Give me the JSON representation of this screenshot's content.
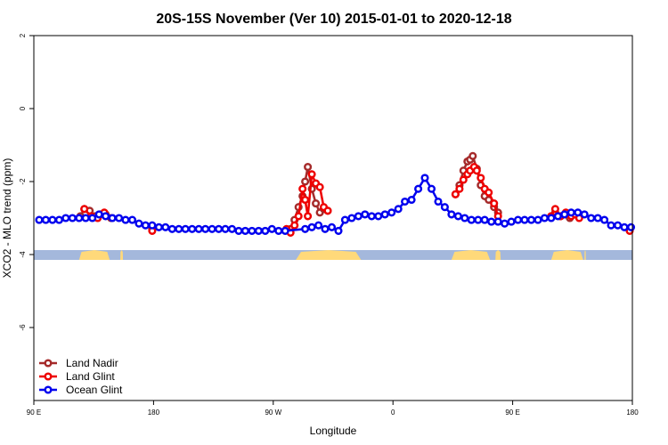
{
  "chart_data": {
    "type": "line",
    "title": "20S-15S November (Ver 10)   2015-01-01 to 2020-12-18",
    "xlabel": "Longitude",
    "ylabel": "XCO2 - MLO trend (ppm)",
    "xlim": [
      90,
      540
    ],
    "ylim": [
      -8,
      2
    ],
    "x_ticks": [
      {
        "value": 90,
        "label": "90 E"
      },
      {
        "value": 180,
        "label": "180"
      },
      {
        "value": 270,
        "label": "90 W"
      },
      {
        "value": 360,
        "label": "0"
      },
      {
        "value": 450,
        "label": "90 E"
      },
      {
        "value": 540,
        "label": "180"
      }
    ],
    "y_ticks": [
      {
        "value": 2,
        "label": "2"
      },
      {
        "value": 0,
        "label": "0"
      },
      {
        "value": -2,
        "label": "-2"
      },
      {
        "value": -4,
        "label": "-4"
      },
      {
        "value": -6,
        "label": "-6"
      }
    ],
    "grid": false,
    "legend_position": "bottom-left",
    "landmask": {
      "y": -4,
      "ocean_color": "#a4b8dc",
      "land_color": "#ffd97a",
      "land_ranges": [
        [
          124,
          147
        ],
        [
          155,
          157
        ],
        [
          287,
          336
        ],
        [
          404,
          433
        ],
        [
          437,
          441
        ],
        [
          479,
          503
        ],
        [
          504,
          505
        ]
      ]
    },
    "series": [
      {
        "name": "Land Nadir",
        "color": "#a52a2a",
        "x": [
          125,
          128,
          132,
          136,
          140,
          144,
          148,
          179,
          283,
          286,
          289,
          292,
          294,
          296,
          299,
          302,
          305,
          308,
          311,
          407,
          410,
          413,
          416,
          418,
          420,
          423,
          426,
          429,
          432,
          436,
          439,
          479,
          482,
          486,
          490,
          493,
          497,
          500
        ],
        "y": [
          -2.95,
          -2.75,
          -2.8,
          -2.95,
          -2.9,
          -2.9,
          -3.0,
          -3.3,
          -3.3,
          -3.05,
          -2.7,
          -2.4,
          -2.0,
          -1.6,
          -2.2,
          -2.6,
          -2.85,
          -2.75,
          -2.8,
          -2.35,
          -2.1,
          -1.7,
          -1.45,
          -1.4,
          -1.3,
          -1.65,
          -2.1,
          -2.4,
          -2.5,
          -2.7,
          -2.85,
          -2.95,
          -2.85,
          -2.95,
          -2.9,
          -3.0,
          -2.9,
          -2.95
        ]
      },
      {
        "name": "Land Glint",
        "color": "#ee0000",
        "x": [
          128,
          133,
          138,
          143,
          179,
          280,
          283,
          286,
          289,
          292,
          294,
          296,
          299,
          302,
          305,
          308,
          311,
          407,
          410,
          413,
          416,
          418,
          421,
          423,
          426,
          429,
          432,
          436,
          439,
          479,
          482,
          486,
          490,
          494,
          497,
          500,
          538
        ],
        "y": [
          -2.75,
          -2.95,
          -3.0,
          -2.85,
          -3.35,
          -3.3,
          -3.4,
          -3.2,
          -2.95,
          -2.2,
          -2.5,
          -2.95,
          -1.8,
          -2.05,
          -2.15,
          -2.7,
          -2.8,
          -2.35,
          -2.2,
          -1.95,
          -1.8,
          -1.7,
          -1.6,
          -1.7,
          -1.9,
          -2.2,
          -2.3,
          -2.6,
          -2.95,
          -2.95,
          -2.75,
          -2.95,
          -2.85,
          -2.95,
          -2.9,
          -3.0,
          -3.35
        ]
      },
      {
        "name": "Ocean Glint",
        "color": "#0000ee",
        "x": [
          94,
          99,
          104,
          109,
          114,
          119,
          124,
          129,
          134,
          139,
          144,
          149,
          154,
          159,
          164,
          169,
          174,
          179,
          184,
          189,
          194,
          199,
          204,
          209,
          214,
          219,
          224,
          229,
          234,
          239,
          244,
          249,
          254,
          259,
          264,
          269,
          274,
          279,
          294,
          299,
          304,
          309,
          314,
          319,
          324,
          329,
          334,
          339,
          344,
          349,
          354,
          359,
          364,
          369,
          374,
          379,
          384,
          389,
          394,
          399,
          404,
          409,
          414,
          419,
          424,
          429,
          434,
          439,
          444,
          449,
          454,
          459,
          464,
          469,
          474,
          479,
          484,
          489,
          494,
          499,
          504,
          509,
          514,
          519,
          524,
          529,
          534,
          539
        ],
        "y": [
          -3.05,
          -3.05,
          -3.05,
          -3.05,
          -3.0,
          -3.0,
          -3.0,
          -3.0,
          -3.0,
          -2.9,
          -2.95,
          -3.0,
          -3.0,
          -3.05,
          -3.05,
          -3.15,
          -3.2,
          -3.2,
          -3.25,
          -3.25,
          -3.3,
          -3.3,
          -3.3,
          -3.3,
          -3.3,
          -3.3,
          -3.3,
          -3.3,
          -3.3,
          -3.3,
          -3.35,
          -3.35,
          -3.35,
          -3.35,
          -3.35,
          -3.3,
          -3.35,
          -3.35,
          -3.3,
          -3.25,
          -3.2,
          -3.3,
          -3.25,
          -3.35,
          -3.05,
          -3.0,
          -2.95,
          -2.9,
          -2.95,
          -2.95,
          -2.9,
          -2.85,
          -2.75,
          -2.55,
          -2.5,
          -2.2,
          -1.9,
          -2.2,
          -2.55,
          -2.7,
          -2.9,
          -2.95,
          -3.0,
          -3.05,
          -3.05,
          -3.05,
          -3.1,
          -3.1,
          -3.15,
          -3.1,
          -3.05,
          -3.05,
          -3.05,
          -3.05,
          -3.0,
          -3.0,
          -2.95,
          -2.9,
          -2.85,
          -2.85,
          -2.9,
          -3.0,
          -3.0,
          -3.05,
          -3.2,
          -3.2,
          -3.25,
          -3.25
        ]
      }
    ]
  }
}
